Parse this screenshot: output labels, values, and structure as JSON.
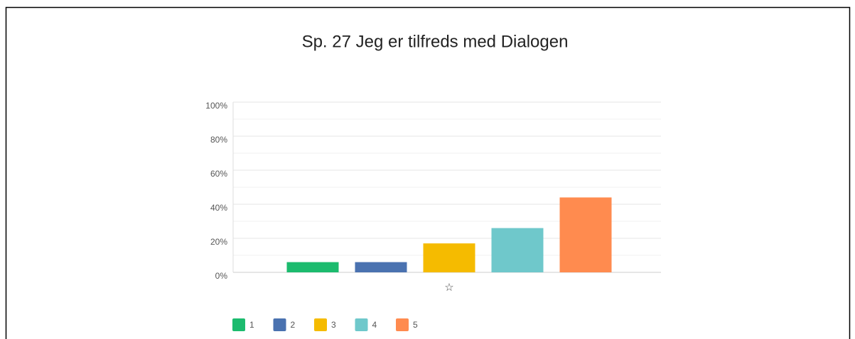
{
  "chart_data": {
    "type": "bar",
    "title": "Sp. 27 Jeg er tilfreds med Dialogen",
    "categories": [
      "☆"
    ],
    "series": [
      {
        "name": "1",
        "color": "#1cbb6e",
        "values": [
          6
        ]
      },
      {
        "name": "2",
        "color": "#4a72b0",
        "values": [
          6
        ]
      },
      {
        "name": "3",
        "color": "#f5bb00",
        "values": [
          17
        ]
      },
      {
        "name": "4",
        "color": "#6fc8cb",
        "values": [
          26
        ]
      },
      {
        "name": "5",
        "color": "#ff8b4f",
        "values": [
          44
        ]
      }
    ],
    "ylim": [
      0,
      100
    ],
    "yticks": [
      {
        "value": 0,
        "label": "0%"
      },
      {
        "value": 20,
        "label": "20%"
      },
      {
        "value": 40,
        "label": "40%"
      },
      {
        "value": 60,
        "label": "60%"
      },
      {
        "value": 80,
        "label": "80%"
      },
      {
        "value": 100,
        "label": "100%"
      }
    ],
    "minor_yticks": [
      10,
      30,
      50,
      70,
      90
    ],
    "grid": true,
    "legend": "bottom"
  }
}
